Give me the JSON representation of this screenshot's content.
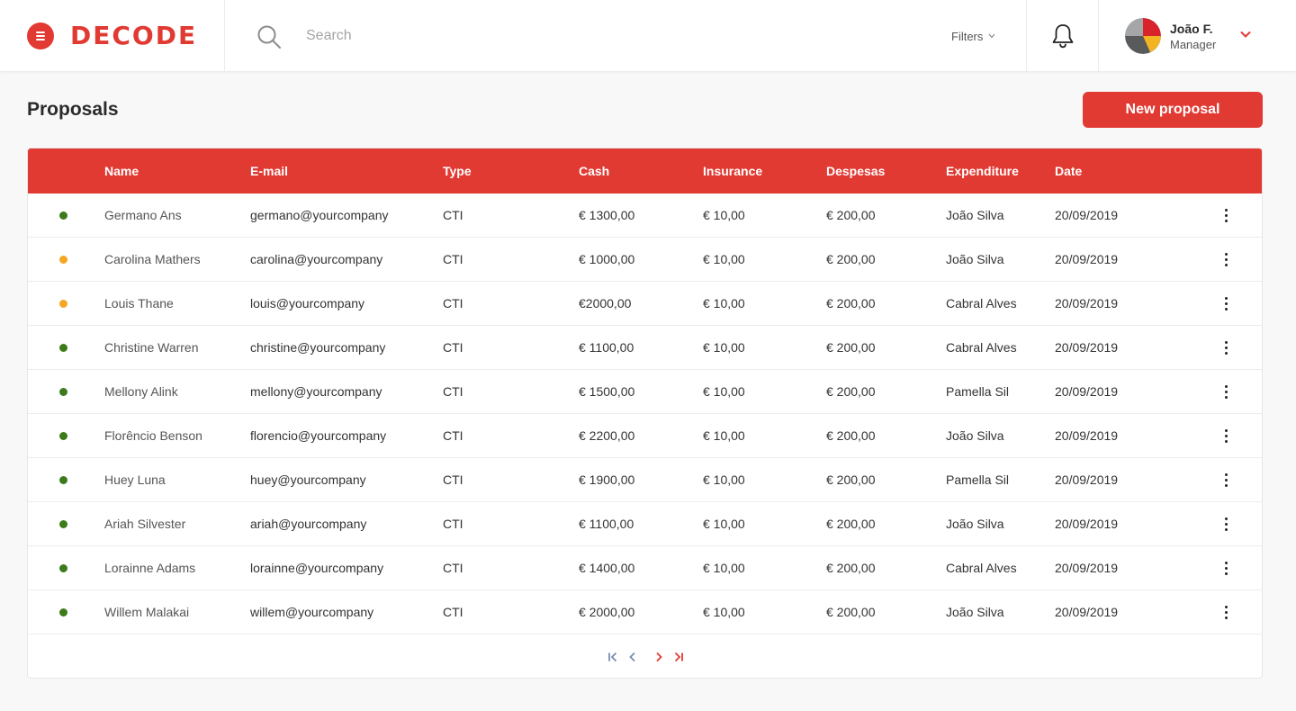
{
  "header": {
    "logo_text": "DECODE",
    "search_placeholder": "Search",
    "filters_label": "Filters",
    "user": {
      "name": "João F.",
      "role": "Manager"
    }
  },
  "page": {
    "title": "Proposals",
    "new_button": "New proposal"
  },
  "colors": {
    "accent": "#e13a32",
    "status_active": "#3d7a1a",
    "status_pending": "#f5a623"
  },
  "table": {
    "columns": [
      "Name",
      "E-mail",
      "Type",
      "Cash",
      "Insurance",
      "Despesas",
      "Expenditure",
      "Date"
    ],
    "rows": [
      {
        "status": "active",
        "name": "Germano Ans",
        "email": "germano@yourcompany",
        "type": "CTI",
        "cash": "€ 1300,00",
        "insurance": "€ 10,00",
        "despesas": "€ 200,00",
        "expenditure": "João Silva",
        "date": "20/09/2019"
      },
      {
        "status": "pending",
        "name": "Carolina Mathers",
        "email": "carolina@yourcompany",
        "type": "CTI",
        "cash": "€ 1000,00",
        "insurance": "€ 10,00",
        "despesas": "€ 200,00",
        "expenditure": "João Silva",
        "date": "20/09/2019"
      },
      {
        "status": "pending",
        "name": "Louis Thane",
        "email": "louis@yourcompany",
        "type": "CTI",
        "cash": "€2000,00",
        "insurance": "€ 10,00",
        "despesas": "€ 200,00",
        "expenditure": "Cabral Alves",
        "date": "20/09/2019"
      },
      {
        "status": "active",
        "name": "Christine Warren",
        "email": "christine@yourcompany",
        "type": "CTI",
        "cash": "€ 1100,00",
        "insurance": "€ 10,00",
        "despesas": "€ 200,00",
        "expenditure": "Cabral Alves",
        "date": "20/09/2019"
      },
      {
        "status": "active",
        "name": "Mellony Alink",
        "email": "mellony@yourcompany",
        "type": "CTI",
        "cash": "€ 1500,00",
        "insurance": "€ 10,00",
        "despesas": "€ 200,00",
        "expenditure": "Pamella Sil",
        "date": "20/09/2019"
      },
      {
        "status": "active",
        "name": "Florêncio Benson",
        "email": "florencio@yourcompany",
        "type": "CTI",
        "cash": "€ 2200,00",
        "insurance": "€ 10,00",
        "despesas": "€ 200,00",
        "expenditure": "João Silva",
        "date": "20/09/2019"
      },
      {
        "status": "active",
        "name": "Huey Luna",
        "email": "huey@yourcompany",
        "type": "CTI",
        "cash": "€ 1900,00",
        "insurance": "€ 10,00",
        "despesas": "€ 200,00",
        "expenditure": "Pamella Sil",
        "date": "20/09/2019"
      },
      {
        "status": "active",
        "name": "Ariah Silvester",
        "email": "ariah@yourcompany",
        "type": "CTI",
        "cash": "€ 1100,00",
        "insurance": "€ 10,00",
        "despesas": "€ 200,00",
        "expenditure": "João Silva",
        "date": "20/09/2019"
      },
      {
        "status": "active",
        "name": "Lorainne Adams",
        "email": "lorainne@yourcompany",
        "type": "CTI",
        "cash": "€ 1400,00",
        "insurance": "€ 10,00",
        "despesas": "€ 200,00",
        "expenditure": "Cabral Alves",
        "date": "20/09/2019"
      },
      {
        "status": "active",
        "name": "Willem Malakai",
        "email": "willem@yourcompany",
        "type": "CTI",
        "cash": "€ 2000,00",
        "insurance": "€ 10,00",
        "despesas": "€ 200,00",
        "expenditure": "João Silva",
        "date": "20/09/2019"
      }
    ]
  },
  "pagination": {
    "icons": [
      "first-page-icon",
      "prev-page-icon",
      "next-page-icon",
      "last-page-icon"
    ]
  }
}
